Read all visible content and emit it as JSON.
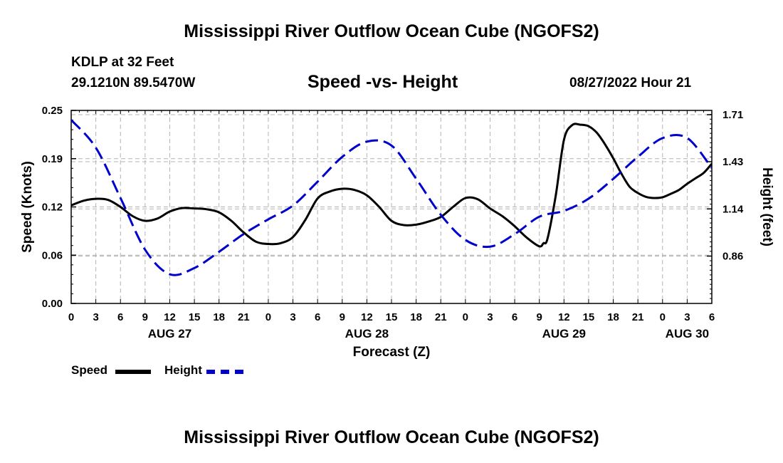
{
  "header": {
    "title": "Mississippi River Outflow Ocean Cube (NGOFS2)",
    "station": "KDLP at 32 Feet",
    "coords": "29.1210N  89.5470W",
    "subtitle": "Speed -vs- Height",
    "datetime": "08/27/2022 Hour 21"
  },
  "footer": {
    "title": "Mississippi River Outflow Ocean Cube (NGOFS2)"
  },
  "legend": {
    "speed_label": "Speed",
    "height_label": "Height"
  },
  "colors": {
    "speed": "#000000",
    "height": "#0000cc",
    "grid": "#b4b4b4"
  },
  "chart_data": {
    "type": "line",
    "xlabel": "Forecast (Z)",
    "ylabel_left": "Speed (Knots)",
    "ylabel_right": "Height (feet)",
    "x_unit": "hours since 08/27 00Z",
    "xlim": [
      0,
      78
    ],
    "ylim_left": [
      0,
      0.25
    ],
    "ylim_right": [
      0.57,
      1.74
    ],
    "yticks_left": [
      "0.00",
      "0.06",
      "0.12",
      "0.19",
      "0.25"
    ],
    "yticks_left_values": [
      0,
      0.0625,
      0.125,
      0.1875,
      0.25
    ],
    "yticks_right": [
      "0.86",
      "1.14",
      "1.43",
      "1.71"
    ],
    "yticks_right_values": [
      0.857,
      1.143,
      1.429,
      1.714
    ],
    "xticks": [
      "0",
      "3",
      "6",
      "9",
      "12",
      "15",
      "18",
      "21",
      "0",
      "3",
      "6",
      "9",
      "12",
      "15",
      "18",
      "21",
      "0",
      "3",
      "6",
      "9",
      "12",
      "15",
      "18",
      "21",
      "0",
      "3",
      "6"
    ],
    "xticks_values": [
      0,
      3,
      6,
      9,
      12,
      15,
      18,
      21,
      24,
      27,
      30,
      33,
      36,
      39,
      42,
      45,
      48,
      51,
      54,
      57,
      60,
      63,
      66,
      69,
      72,
      75,
      78
    ],
    "date_labels": [
      {
        "label": "AUG 27",
        "x": 12
      },
      {
        "label": "AUG 28",
        "x": 36
      },
      {
        "label": "AUG 29",
        "x": 60
      },
      {
        "label": "AUG 30",
        "x": 75
      }
    ],
    "series": [
      {
        "name": "Speed",
        "axis": "left",
        "style": "solid",
        "x": [
          0,
          1.5,
          3,
          4.5,
          6,
          7.5,
          9,
          10.5,
          12,
          13.5,
          15,
          16.5,
          18,
          19.5,
          21,
          22.5,
          24,
          25.5,
          27,
          28.5,
          30,
          31.5,
          33,
          34.5,
          36,
          37.5,
          39,
          40.5,
          42,
          43.5,
          45,
          46.5,
          48,
          49.5,
          51,
          52.5,
          54,
          55.5,
          57,
          57.5,
          58,
          59,
          60,
          61,
          62,
          63,
          64,
          65,
          66,
          67,
          68,
          69,
          70,
          71,
          72,
          73,
          74,
          75,
          76,
          77,
          78
        ],
        "values": [
          0.127,
          0.133,
          0.1355,
          0.134,
          0.125,
          0.113,
          0.107,
          0.11,
          0.119,
          0.1235,
          0.123,
          0.122,
          0.118,
          0.107,
          0.092,
          0.08,
          0.077,
          0.078,
          0.086,
          0.108,
          0.136,
          0.145,
          0.1485,
          0.147,
          0.14,
          0.125,
          0.107,
          0.1015,
          0.102,
          0.106,
          0.112,
          0.125,
          0.1365,
          0.135,
          0.123,
          0.113,
          0.1,
          0.085,
          0.074,
          0.078,
          0.084,
          0.14,
          0.212,
          0.231,
          0.2315,
          0.2295,
          0.221,
          0.206,
          0.188,
          0.168,
          0.151,
          0.143,
          0.138,
          0.1365,
          0.1375,
          0.142,
          0.147,
          0.155,
          0.162,
          0.169,
          0.181
        ]
      },
      {
        "name": "Height",
        "axis": "right",
        "style": "dashed",
        "x": [
          0,
          3,
          6,
          9,
          12,
          15,
          18,
          21,
          24,
          27,
          30,
          33,
          36,
          39,
          42,
          45,
          48,
          51,
          54,
          57,
          60,
          63,
          66,
          69,
          72,
          75,
          78
        ],
        "values": [
          1.682,
          1.514,
          1.21,
          0.896,
          0.747,
          0.785,
          0.883,
          0.991,
          1.08,
          1.163,
          1.308,
          1.458,
          1.551,
          1.527,
          1.326,
          1.108,
          0.955,
          0.914,
          0.99,
          1.096,
          1.131,
          1.205,
          1.325,
          1.459,
          1.572,
          1.573,
          1.391
        ]
      }
    ]
  }
}
